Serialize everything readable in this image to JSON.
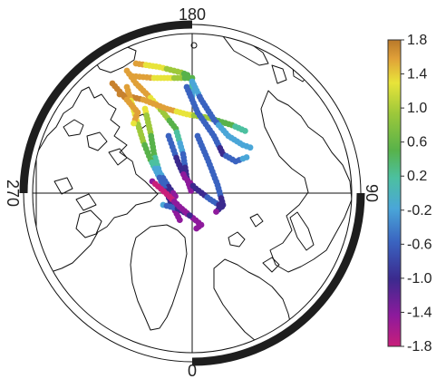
{
  "map": {
    "projection": "north polar stereographic",
    "longitude_labels": {
      "top": "180",
      "bottom": "0",
      "left": "270",
      "right": "90"
    },
    "frame_color": "#1e1e1e",
    "land_outline_color": "#111111"
  },
  "colorbar": {
    "ticks": [
      "1.8",
      "1.4",
      "1.0",
      "0.6",
      "0.2",
      "-0.2",
      "-0.6",
      "-1.0",
      "-1.4",
      "-1.8"
    ],
    "range": [
      -1.8,
      1.8
    ],
    "colors": [
      "#c81e7a",
      "#8e1a9c",
      "#3b2a8e",
      "#3a63c0",
      "#4aa6d8",
      "#4cc0a0",
      "#58b24a",
      "#9dc83a",
      "#e8e43a",
      "#e0a038",
      "#c8822e"
    ]
  },
  "tracks": {
    "description_hidden": true,
    "color_scale": "temperature anomaly"
  }
}
